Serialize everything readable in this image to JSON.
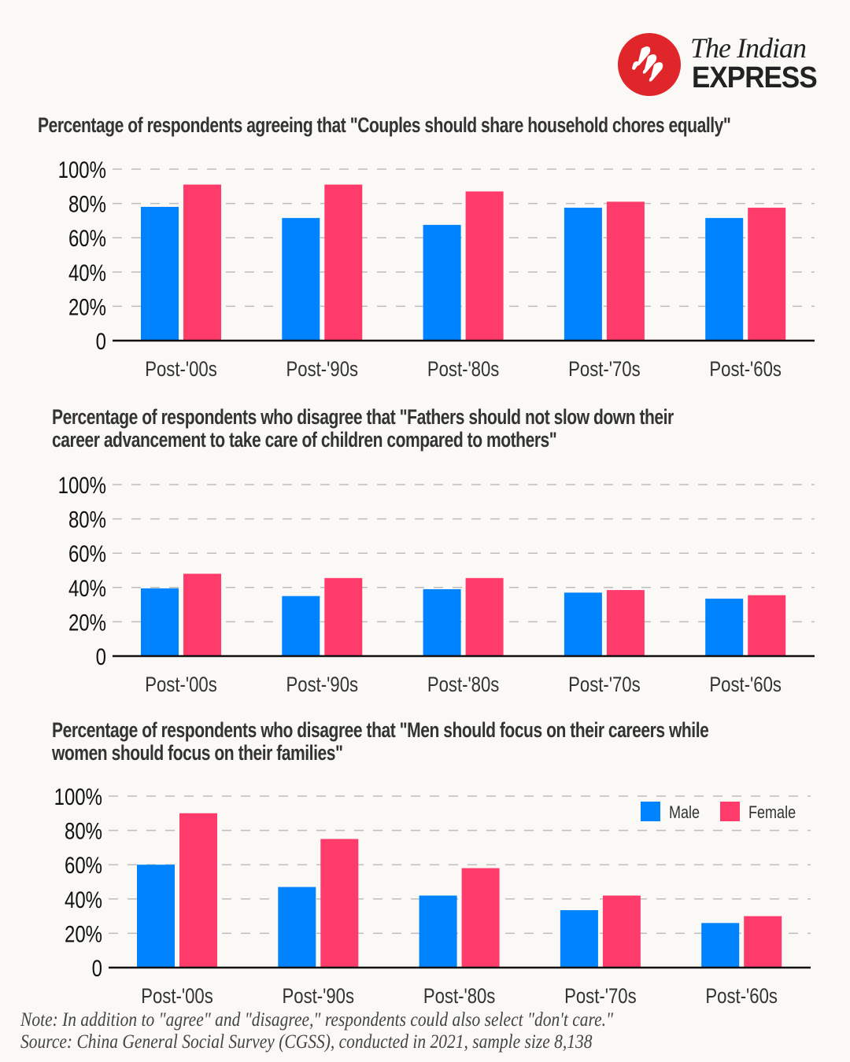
{
  "brand": {
    "line1": "The Indian",
    "line2": "EXPRESS",
    "color": "#E0262A"
  },
  "colors": {
    "male": "#0083FE",
    "female": "#FF3B6B",
    "grid": "#BDBDBD",
    "axis": "#111111",
    "background": "#FAF9F6"
  },
  "legend": [
    {
      "label": "Male",
      "color": "#0083FE"
    },
    {
      "label": "Female",
      "color": "#FF3B6B"
    }
  ],
  "chart_data": [
    {
      "type": "bar",
      "title": "Percentage of respondents agreeing that \"Couples should share household chores equally\"",
      "title_lines": [
        "Percentage of respondents agreeing that \"Couples should share household chores equally\""
      ],
      "categories": [
        "Post-'00s",
        "Post-'90s",
        "Post-'80s",
        "Post-'70s",
        "Post-'60s"
      ],
      "series": [
        {
          "name": "Male",
          "values": [
            78,
            71.5,
            67.5,
            77.5,
            71.5
          ]
        },
        {
          "name": "Female",
          "values": [
            91,
            91,
            87,
            81,
            77.5
          ]
        }
      ],
      "yticks": [
        0,
        20,
        40,
        60,
        80,
        100
      ],
      "ytick_labels": [
        "0",
        "20%",
        "40%",
        "60%",
        "80%",
        "100%"
      ],
      "ylim": [
        0,
        100
      ],
      "xlabel": "",
      "ylabel": "",
      "grid": true,
      "legend": false
    },
    {
      "type": "bar",
      "title": "Percentage of respondents who disagree that \"Fathers should not slow down their career advancement to take care of children compared to mothers\"",
      "title_lines": [
        "Percentage of respondents who disagree that \"Fathers should not slow down their",
        "career advancement to take care of children compared to mothers\""
      ],
      "categories": [
        "Post-'00s",
        "Post-'90s",
        "Post-'80s",
        "Post-'70s",
        "Post-'60s"
      ],
      "series": [
        {
          "name": "Male",
          "values": [
            39.5,
            35,
            39,
            37,
            33.5
          ]
        },
        {
          "name": "Female",
          "values": [
            48,
            45.5,
            45.5,
            38.5,
            35.5
          ]
        }
      ],
      "yticks": [
        0,
        20,
        40,
        60,
        80,
        100
      ],
      "ytick_labels": [
        "0",
        "20%",
        "40%",
        "60%",
        "80%",
        "100%"
      ],
      "ylim": [
        0,
        100
      ],
      "xlabel": "",
      "ylabel": "",
      "grid": true,
      "legend": false
    },
    {
      "type": "bar",
      "title": "Percentage of respondents who disagree that \"Men should focus on their careers while women should focus on their families\"",
      "title_lines": [
        "Percentage of respondents who disagree that \"Men should focus on their careers while",
        "women should focus on their families\""
      ],
      "categories": [
        "Post-'00s",
        "Post-'90s",
        "Post-'80s",
        "Post-'70s",
        "Post-'60s"
      ],
      "series": [
        {
          "name": "Male",
          "values": [
            60,
            47,
            42,
            33.5,
            26
          ]
        },
        {
          "name": "Female",
          "values": [
            90,
            75,
            58,
            42,
            30
          ]
        }
      ],
      "yticks": [
        0,
        20,
        40,
        60,
        80,
        100
      ],
      "ytick_labels": [
        "0",
        "20%",
        "40%",
        "60%",
        "80%",
        "100%"
      ],
      "ylim": [
        0,
        100
      ],
      "xlabel": "",
      "ylabel": "",
      "grid": true,
      "legend": "top-right"
    }
  ],
  "footer": {
    "note": "Note: In addition to \"agree\" and \"disagree,\" respondents could also select \"don't care.\"",
    "source": "Source: China General Social Survey (CGSS), conducted in 2021, sample size 8,138"
  }
}
